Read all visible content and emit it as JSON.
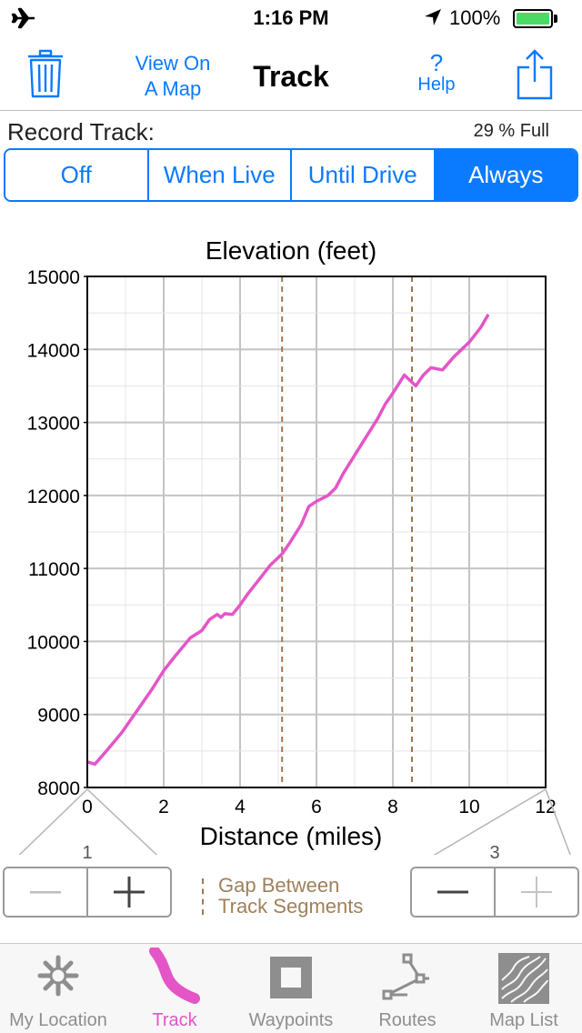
{
  "status": {
    "time": "1:16 PM",
    "battery": "100%"
  },
  "nav": {
    "view_map_line1": "View On",
    "view_map_line2": "A Map",
    "title": "Track",
    "help_symbol": "?",
    "help_label": "Help"
  },
  "record": {
    "label": "Record Track:",
    "full": "29 % Full",
    "options": [
      "Off",
      "When Live",
      "Until Drive",
      "Always"
    ],
    "selected": "Always"
  },
  "chart_data": {
    "type": "line",
    "title": "Elevation (feet)",
    "xlabel": "Distance (miles)",
    "ylabel": "",
    "xlim": [
      0,
      12
    ],
    "ylim": [
      8000,
      15000
    ],
    "xticks": [
      "0",
      "2",
      "4",
      "6",
      "8",
      "10",
      "12"
    ],
    "yticks": [
      "8000",
      "9000",
      "10000",
      "11000",
      "12000",
      "13000",
      "14000",
      "15000"
    ],
    "grid": true,
    "segment_gaps_x": [
      5.1,
      8.5
    ],
    "series": [
      {
        "color": "#e455c8",
        "x": [
          0,
          0.2,
          0.5,
          0.9,
          1.3,
          1.7,
          2.0,
          2.3,
          2.7,
          3.0,
          3.2,
          3.4,
          3.5,
          3.6,
          3.8,
          4.0,
          4.2,
          4.5,
          4.8,
          5.1,
          5.3,
          5.6,
          5.8,
          6.0,
          6.3,
          6.5,
          6.7,
          7.0,
          7.3,
          7.6,
          7.8,
          8.0,
          8.3,
          8.5,
          8.6,
          8.8,
          9.0,
          9.3,
          9.6,
          9.8,
          10.0,
          10.3,
          10.5
        ],
        "y": [
          8350,
          8320,
          8500,
          8750,
          9050,
          9350,
          9600,
          9800,
          10050,
          10150,
          10300,
          10370,
          10330,
          10380,
          10370,
          10500,
          10650,
          10850,
          11050,
          11200,
          11350,
          11600,
          11850,
          11920,
          12000,
          12100,
          12300,
          12550,
          12800,
          13050,
          13250,
          13400,
          13650,
          13550,
          13500,
          13650,
          13750,
          13720,
          13900,
          14000,
          14100,
          14300,
          14480
        ]
      }
    ]
  },
  "zoom": {
    "left_level": "1",
    "right_level": "3",
    "minus": "—",
    "plus": "+"
  },
  "legend": {
    "line1": "Gap Between",
    "line2": "Track Segments"
  },
  "tabs": [
    {
      "label": "My Location",
      "icon": "my-location-icon"
    },
    {
      "label": "Track",
      "icon": "track-icon"
    },
    {
      "label": "Waypoints",
      "icon": "waypoints-icon"
    },
    {
      "label": "Routes",
      "icon": "routes-icon"
    },
    {
      "label": "Map List",
      "icon": "map-list-icon"
    }
  ]
}
